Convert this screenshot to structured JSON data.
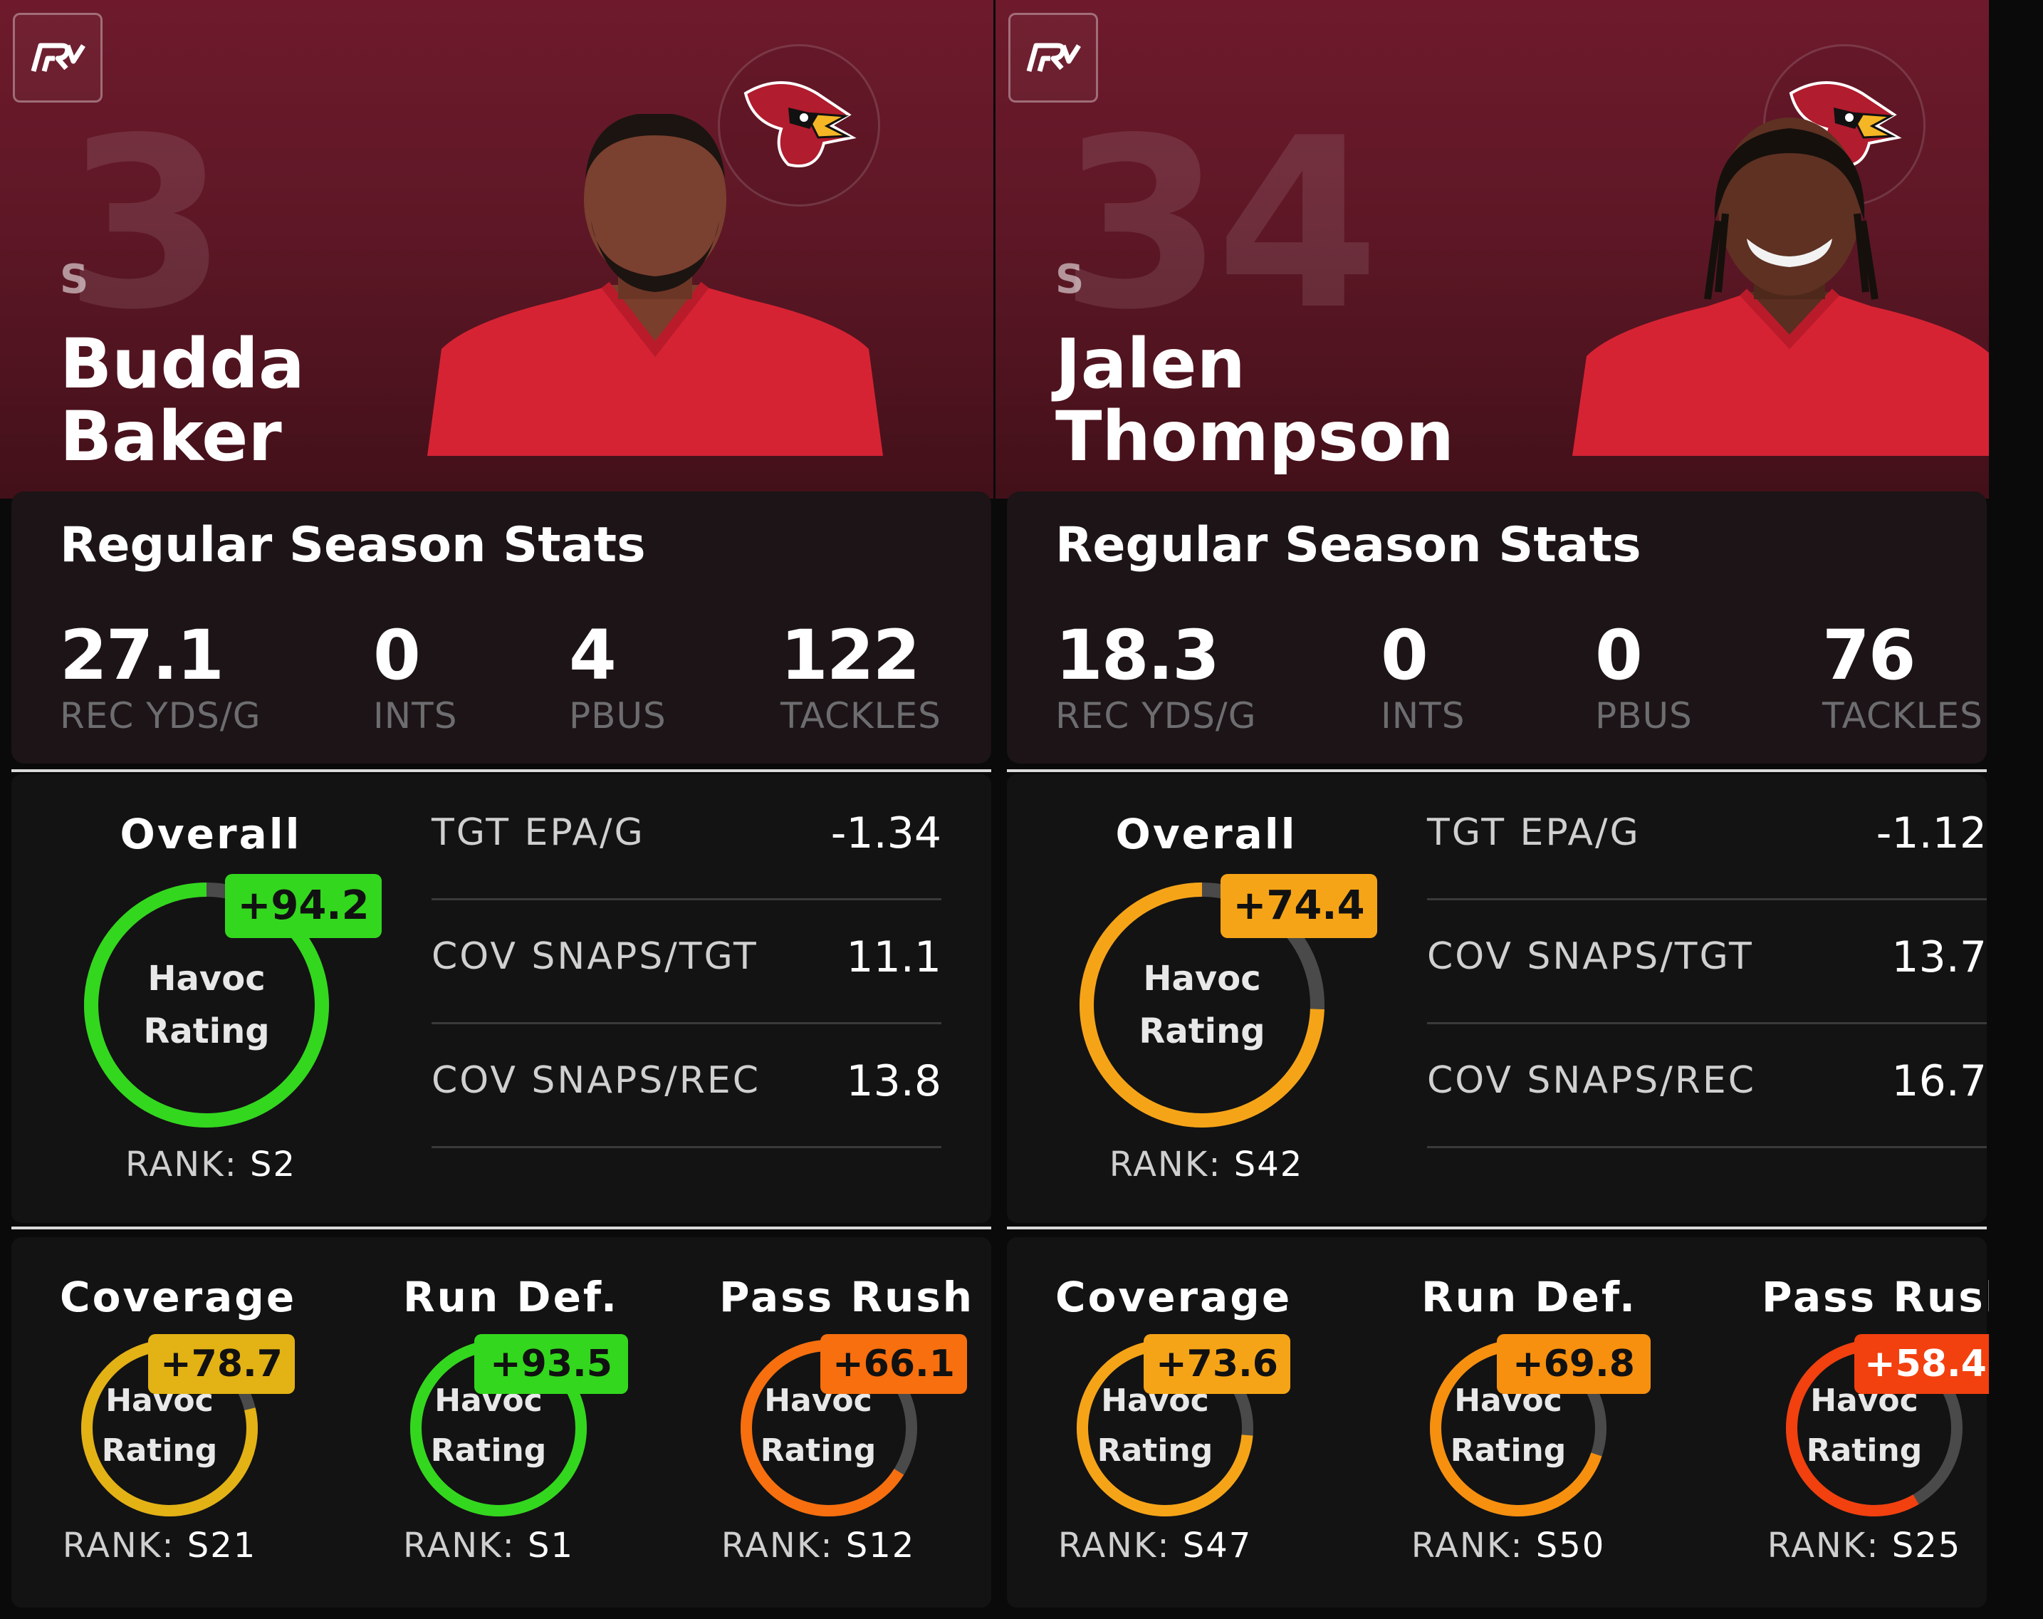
{
  "cards": [
    {
      "jersey": "3",
      "position": "S",
      "first_name": "Budda",
      "last_name": "Baker",
      "season_title": "Regular Season Stats",
      "stats": [
        {
          "value": "27.1",
          "label": "REC YDS/G"
        },
        {
          "value": "0",
          "label": "INTS"
        },
        {
          "value": "4",
          "label": "PBUS"
        },
        {
          "value": "122",
          "label": "TACKLES"
        }
      ],
      "overall": {
        "title": "Overall",
        "label_line1": "Havoc",
        "label_line2": "Rating",
        "score": "+94.2",
        "score_value": 94.2,
        "color": "#33d71e",
        "rank_label": "RANK:",
        "rank": "S2"
      },
      "metrics": [
        {
          "label": "TGT EPA/G",
          "value": "-1.34"
        },
        {
          "label": "COV SNAPS/TGT",
          "value": "11.1"
        },
        {
          "label": "COV SNAPS/REC",
          "value": "13.8"
        }
      ],
      "sub_ratings": [
        {
          "title": "Coverage",
          "label_line1": "Havoc",
          "label_line2": "Rating",
          "score": "+78.7",
          "score_value": 78.7,
          "color": "#e3b215",
          "rank_label": "RANK:",
          "rank": "S21"
        },
        {
          "title": "Run Def.",
          "label_line1": "Havoc",
          "label_line2": "Rating",
          "score": "+93.5",
          "score_value": 93.5,
          "color": "#33d71e",
          "rank_label": "RANK:",
          "rank": "S1"
        },
        {
          "title": "Pass Rush",
          "label_line1": "Havoc",
          "label_line2": "Rating",
          "score": "+66.1",
          "score_value": 66.1,
          "color": "#f76f0e",
          "rank_label": "RANK:",
          "rank": "S12"
        }
      ]
    },
    {
      "jersey": "34",
      "position": "S",
      "first_name": "Jalen",
      "last_name": "Thompson",
      "season_title": "Regular Season Stats",
      "stats": [
        {
          "value": "18.3",
          "label": "REC YDS/G"
        },
        {
          "value": "0",
          "label": "INTS"
        },
        {
          "value": "0",
          "label": "PBUS"
        },
        {
          "value": "76",
          "label": "TACKLES"
        }
      ],
      "overall": {
        "title": "Overall",
        "label_line1": "Havoc",
        "label_line2": "Rating",
        "score": "+74.4",
        "score_value": 74.4,
        "color": "#f6a417",
        "rank_label": "RANK:",
        "rank": "S42"
      },
      "metrics": [
        {
          "label": "TGT EPA/G",
          "value": "-1.12"
        },
        {
          "label": "COV SNAPS/TGT",
          "value": "13.7"
        },
        {
          "label": "COV SNAPS/REC",
          "value": "16.7"
        }
      ],
      "sub_ratings": [
        {
          "title": "Coverage",
          "label_line1": "Havoc",
          "label_line2": "Rating",
          "score": "+73.6",
          "score_value": 73.6,
          "color": "#f6a417",
          "rank_label": "RANK:",
          "rank": "S47"
        },
        {
          "title": "Run Def.",
          "label_line1": "Havoc",
          "label_line2": "Rating",
          "score": "+69.8",
          "score_value": 69.8,
          "color": "#f7900f",
          "rank_label": "RANK:",
          "rank": "S50"
        },
        {
          "title": "Pass Rush",
          "label_line1": "Havoc",
          "label_line2": "Rating",
          "score": "+58.4",
          "score_value": 58.4,
          "color": "#f2400f",
          "rank_label": "RANK:",
          "rank": "S25"
        }
      ]
    }
  ],
  "colors": {
    "hero_top": "#6e1a2c",
    "panel_bg": "#131313",
    "track": "#4a4a4a"
  }
}
